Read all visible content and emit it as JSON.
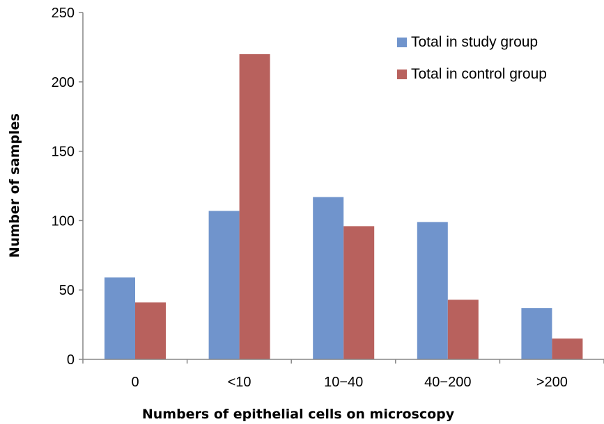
{
  "chart_data": {
    "type": "bar",
    "title": "",
    "xlabel": "Numbers of epithelial cells on microscopy",
    "ylabel": "Number of samples",
    "categories": [
      "0",
      "<10",
      "10−40",
      "40−200",
      ">200"
    ],
    "ylim": [
      0,
      250
    ],
    "yticks": [
      "0",
      "50",
      "100",
      "150",
      "200",
      "250"
    ],
    "grid": false,
    "legend_position": "top-right",
    "series": [
      {
        "name": "Total in study group",
        "color": "#7094cc",
        "values": [
          59,
          107,
          117,
          99,
          37
        ]
      },
      {
        "name": "Total in control group",
        "color": "#b8615d",
        "values": [
          41,
          220,
          96,
          43,
          15
        ]
      }
    ]
  }
}
